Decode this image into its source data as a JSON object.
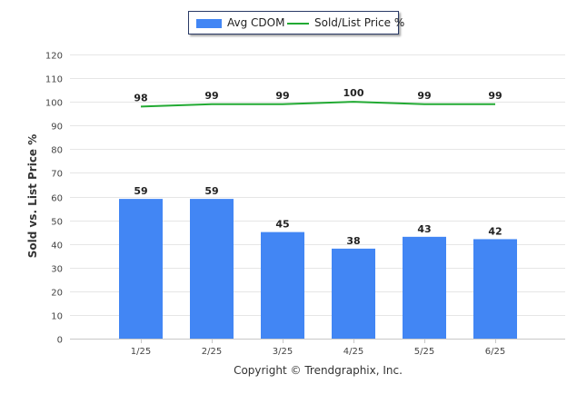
{
  "legend": {
    "bar_label": "Avg CDOM",
    "line_label": "Sold/List Price %"
  },
  "credit": "Copyright © Trendgraphix, Inc.",
  "chart_data": {
    "type": "bar",
    "ylabel": "Sold vs. List Price %",
    "xlabel": "",
    "ylim": [
      0,
      120
    ],
    "yticks": [
      0,
      10,
      20,
      30,
      40,
      50,
      60,
      70,
      80,
      90,
      100,
      110,
      120
    ],
    "categories": [
      "1/25",
      "2/25",
      "3/25",
      "4/25",
      "5/25",
      "6/25"
    ],
    "series": [
      {
        "name": "Avg CDOM",
        "kind": "bar",
        "color": "#4286f4",
        "values": [
          59,
          59,
          45,
          38,
          43,
          42
        ]
      },
      {
        "name": "Sold/List Price %",
        "kind": "line",
        "color": "#22aa33",
        "values": [
          98,
          99,
          99,
          100,
          99,
          99
        ]
      }
    ],
    "grid": true,
    "legend_position": "top-center"
  }
}
